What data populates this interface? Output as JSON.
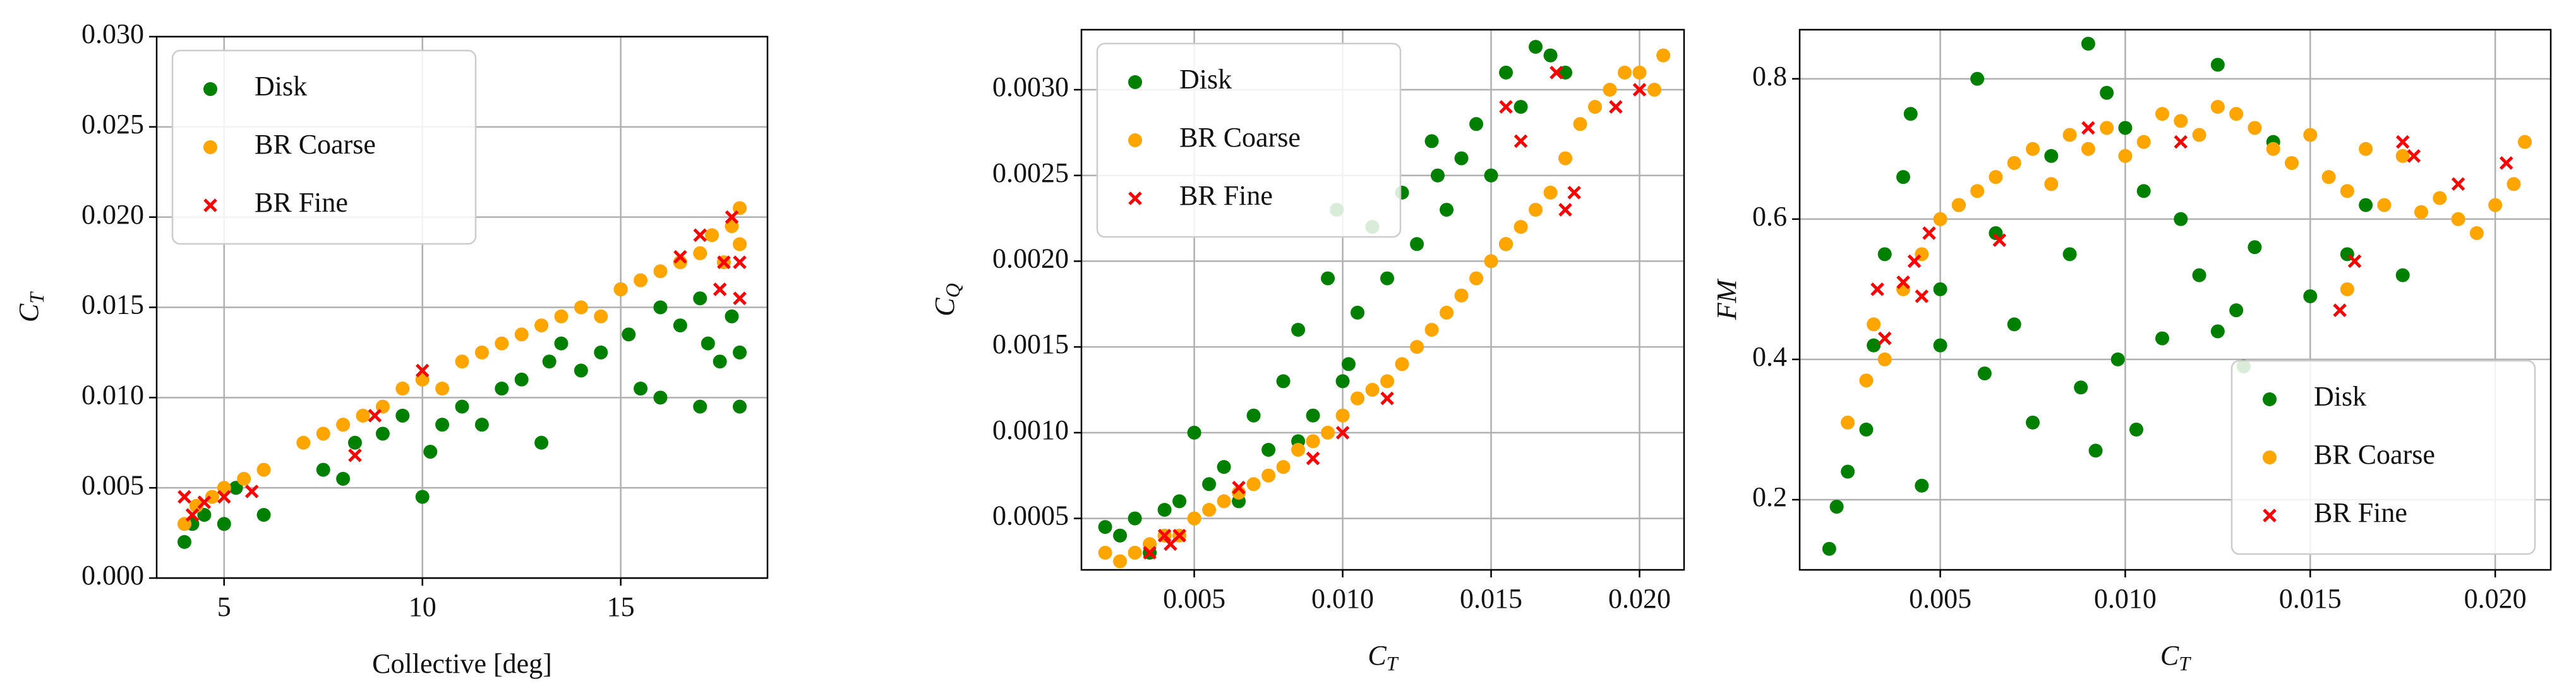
{
  "chart_data": [
    {
      "type": "scatter",
      "xlabel": "Collective [deg]",
      "ylabel": "C_T",
      "grid": true,
      "legend": "upper left",
      "xlim": [
        3.3,
        18.7
      ],
      "xticks": [
        5,
        10,
        15
      ],
      "ylim": [
        0,
        0.03
      ],
      "yticks": [
        {
          "value": 0,
          "label": "0.000"
        },
        {
          "value": 0.005,
          "label": "0.005"
        },
        {
          "value": 0.01,
          "label": "0.010"
        },
        {
          "value": 0.015,
          "label": "0.015"
        },
        {
          "value": 0.02,
          "label": "0.020"
        },
        {
          "value": 0.025,
          "label": "0.025"
        },
        {
          "value": 0.03,
          "label": "0.030"
        }
      ],
      "series": [
        {
          "name": "Disk",
          "color": "#008000",
          "marker": "o",
          "x": [
            4,
            4.2,
            4.5,
            5,
            5.3,
            6,
            7.5,
            8,
            8.3,
            9,
            9.5,
            10,
            10.2,
            10.5,
            11,
            11.5,
            12,
            12.5,
            13,
            13.2,
            13.5,
            14,
            14.5,
            15,
            15.2,
            15.5,
            16,
            16.5,
            17,
            17.2,
            17.5,
            17.8,
            18,
            18,
            17,
            16
          ],
          "values": [
            0.002,
            0.003,
            0.0035,
            0.003,
            0.005,
            0.0035,
            0.006,
            0.0055,
            0.0075,
            0.008,
            0.009,
            0.0045,
            0.007,
            0.0085,
            0.0095,
            0.0085,
            0.0105,
            0.011,
            0.0075,
            0.012,
            0.013,
            0.0115,
            0.0125,
            0.016,
            0.0135,
            0.0105,
            0.01,
            0.014,
            0.0095,
            0.013,
            0.012,
            0.0145,
            0.0125,
            0.0095,
            0.0155,
            0.015
          ]
        },
        {
          "name": "BR Coarse",
          "color": "#ffa500",
          "marker": "o",
          "x": [
            4,
            4.3,
            4.7,
            5,
            5.5,
            6,
            7,
            7.5,
            8,
            8.5,
            9,
            9.5,
            10,
            10.5,
            11,
            11.5,
            12,
            12.5,
            13,
            13.5,
            14,
            14.5,
            15,
            15.5,
            16,
            16.5,
            17,
            17.3,
            17.6,
            18,
            18,
            17.8
          ],
          "values": [
            0.003,
            0.004,
            0.0045,
            0.005,
            0.0055,
            0.006,
            0.0075,
            0.008,
            0.0085,
            0.009,
            0.0095,
            0.0105,
            0.011,
            0.0105,
            0.012,
            0.0125,
            0.013,
            0.0135,
            0.014,
            0.0145,
            0.015,
            0.0145,
            0.016,
            0.0165,
            0.017,
            0.0175,
            0.018,
            0.019,
            0.0175,
            0.0205,
            0.0185,
            0.0195
          ]
        },
        {
          "name": "BR Fine",
          "color": "#ff0000",
          "marker": "x",
          "x": [
            4,
            4.2,
            4.5,
            5,
            5.7,
            8.3,
            8.8,
            10,
            16.5,
            17,
            17.5,
            17.8,
            18,
            18,
            17.6
          ],
          "values": [
            0.0045,
            0.0035,
            0.0042,
            0.0045,
            0.0048,
            0.0068,
            0.009,
            0.0115,
            0.0178,
            0.019,
            0.016,
            0.02,
            0.0175,
            0.0155,
            0.0175
          ]
        }
      ]
    },
    {
      "type": "scatter",
      "xlabel": "C_T",
      "ylabel": "C_Q",
      "grid": true,
      "legend": "upper left",
      "xlim": [
        0.0012,
        0.0215
      ],
      "xticks": [
        {
          "value": 0.005,
          "label": "0.005"
        },
        {
          "value": 0.01,
          "label": "0.010"
        },
        {
          "value": 0.015,
          "label": "0.015"
        },
        {
          "value": 0.02,
          "label": "0.020"
        }
      ],
      "ylim": [
        0.0002,
        0.00335
      ],
      "yticks": [
        {
          "value": 0.0005,
          "label": "0.0005"
        },
        {
          "value": 0.001,
          "label": "0.0010"
        },
        {
          "value": 0.0015,
          "label": "0.0015"
        },
        {
          "value": 0.002,
          "label": "0.0020"
        },
        {
          "value": 0.0025,
          "label": "0.0025"
        },
        {
          "value": 0.003,
          "label": "0.0030"
        }
      ],
      "series": [
        {
          "name": "Disk",
          "color": "#008000",
          "marker": "o",
          "x": [
            0.002,
            0.0025,
            0.003,
            0.0035,
            0.004,
            0.0045,
            0.005,
            0.0055,
            0.006,
            0.0065,
            0.007,
            0.0075,
            0.008,
            0.0085,
            0.009,
            0.0095,
            0.0098,
            0.0102,
            0.0105,
            0.011,
            0.0115,
            0.012,
            0.0125,
            0.013,
            0.0132,
            0.0135,
            0.014,
            0.0145,
            0.015,
            0.0155,
            0.016,
            0.0165,
            0.017,
            0.0175,
            0.0155,
            0.0085,
            0.01
          ],
          "values": [
            0.00045,
            0.0004,
            0.0005,
            0.0003,
            0.00055,
            0.0006,
            0.001,
            0.0007,
            0.0008,
            0.0006,
            0.0011,
            0.0009,
            0.0013,
            0.0016,
            0.0011,
            0.0019,
            0.0023,
            0.0014,
            0.0017,
            0.0022,
            0.0019,
            0.0024,
            0.0021,
            0.0027,
            0.0025,
            0.0023,
            0.0026,
            0.0028,
            0.0025,
            0.0031,
            0.0029,
            0.00325,
            0.0032,
            0.0031,
            0.0021,
            0.00095,
            0.0013
          ]
        },
        {
          "name": "BR Coarse",
          "color": "#ffa500",
          "marker": "o",
          "x": [
            0.002,
            0.0025,
            0.003,
            0.0035,
            0.004,
            0.0045,
            0.005,
            0.0055,
            0.006,
            0.0065,
            0.007,
            0.0075,
            0.008,
            0.0085,
            0.009,
            0.0095,
            0.01,
            0.0105,
            0.011,
            0.0115,
            0.012,
            0.0125,
            0.013,
            0.0135,
            0.014,
            0.0145,
            0.015,
            0.0155,
            0.016,
            0.0165,
            0.017,
            0.0175,
            0.018,
            0.0185,
            0.019,
            0.0195,
            0.02,
            0.0205,
            0.0208
          ],
          "values": [
            0.0003,
            0.00025,
            0.0003,
            0.00035,
            0.0004,
            0.0004,
            0.0005,
            0.00055,
            0.0006,
            0.00065,
            0.0007,
            0.00075,
            0.0008,
            0.0009,
            0.00095,
            0.001,
            0.0011,
            0.0012,
            0.00125,
            0.0013,
            0.0014,
            0.0015,
            0.0016,
            0.0017,
            0.0018,
            0.0019,
            0.002,
            0.0021,
            0.0022,
            0.0023,
            0.0024,
            0.0026,
            0.0028,
            0.0029,
            0.003,
            0.0031,
            0.0031,
            0.003,
            0.0032
          ]
        },
        {
          "name": "BR Fine",
          "color": "#ff0000",
          "marker": "x",
          "x": [
            0.0035,
            0.004,
            0.0042,
            0.0045,
            0.0065,
            0.009,
            0.01,
            0.0115,
            0.0155,
            0.016,
            0.0175,
            0.0178,
            0.0192,
            0.02,
            0.0172
          ],
          "values": [
            0.0003,
            0.0004,
            0.00035,
            0.0004,
            0.00068,
            0.00085,
            0.001,
            0.0012,
            0.0029,
            0.0027,
            0.0023,
            0.0024,
            0.0029,
            0.003,
            0.0031
          ]
        }
      ]
    },
    {
      "type": "scatter",
      "xlabel": "C_T",
      "ylabel": "FM",
      "grid": true,
      "legend": "lower right",
      "xlim": [
        0.0012,
        0.0215
      ],
      "xticks": [
        {
          "value": 0.005,
          "label": "0.005"
        },
        {
          "value": 0.01,
          "label": "0.010"
        },
        {
          "value": 0.015,
          "label": "0.015"
        },
        {
          "value": 0.02,
          "label": "0.020"
        }
      ],
      "ylim": [
        0.1,
        0.87
      ],
      "yticks": [
        0.2,
        0.4,
        0.6,
        0.8
      ],
      "series": [
        {
          "name": "Disk",
          "color": "#008000",
          "marker": "o",
          "x": [
            0.002,
            0.0022,
            0.0025,
            0.003,
            0.0032,
            0.0035,
            0.004,
            0.0042,
            0.0045,
            0.005,
            0.0055,
            0.006,
            0.0062,
            0.0065,
            0.007,
            0.0075,
            0.008,
            0.0085,
            0.009,
            0.0092,
            0.0095,
            0.0098,
            0.01,
            0.0103,
            0.0105,
            0.011,
            0.0115,
            0.012,
            0.0125,
            0.013,
            0.0132,
            0.0135,
            0.014,
            0.015,
            0.016,
            0.0165,
            0.0175,
            0.005,
            0.0088,
            0.0125
          ],
          "values": [
            0.13,
            0.19,
            0.24,
            0.3,
            0.42,
            0.55,
            0.66,
            0.75,
            0.22,
            0.5,
            0.62,
            0.8,
            0.38,
            0.58,
            0.45,
            0.31,
            0.69,
            0.55,
            0.85,
            0.27,
            0.78,
            0.4,
            0.73,
            0.3,
            0.64,
            0.43,
            0.6,
            0.52,
            0.82,
            0.47,
            0.39,
            0.56,
            0.71,
            0.49,
            0.55,
            0.62,
            0.52,
            0.42,
            0.36,
            0.44
          ]
        },
        {
          "name": "BR Coarse",
          "color": "#ffa500",
          "marker": "o",
          "x": [
            0.0025,
            0.003,
            0.0032,
            0.0035,
            0.004,
            0.0045,
            0.005,
            0.0055,
            0.006,
            0.0065,
            0.007,
            0.0075,
            0.008,
            0.0085,
            0.009,
            0.0095,
            0.01,
            0.0105,
            0.011,
            0.0115,
            0.012,
            0.0125,
            0.013,
            0.0135,
            0.014,
            0.0145,
            0.015,
            0.0155,
            0.016,
            0.0165,
            0.017,
            0.0175,
            0.018,
            0.0185,
            0.019,
            0.0195,
            0.02,
            0.0205,
            0.0208,
            0.016
          ],
          "values": [
            0.31,
            0.37,
            0.45,
            0.4,
            0.5,
            0.55,
            0.6,
            0.62,
            0.64,
            0.66,
            0.68,
            0.7,
            0.65,
            0.72,
            0.7,
            0.73,
            0.69,
            0.71,
            0.75,
            0.74,
            0.72,
            0.76,
            0.75,
            0.73,
            0.7,
            0.68,
            0.72,
            0.66,
            0.64,
            0.7,
            0.62,
            0.69,
            0.61,
            0.63,
            0.6,
            0.58,
            0.62,
            0.65,
            0.71,
            0.5
          ]
        },
        {
          "name": "BR Fine",
          "color": "#ff0000",
          "marker": "x",
          "x": [
            0.0033,
            0.0035,
            0.004,
            0.0043,
            0.0045,
            0.0047,
            0.0066,
            0.009,
            0.0115,
            0.0158,
            0.0162,
            0.0175,
            0.0178,
            0.019,
            0.0203
          ],
          "values": [
            0.5,
            0.43,
            0.51,
            0.54,
            0.49,
            0.58,
            0.57,
            0.73,
            0.71,
            0.47,
            0.54,
            0.71,
            0.69,
            0.65,
            0.68
          ]
        }
      ]
    }
  ]
}
